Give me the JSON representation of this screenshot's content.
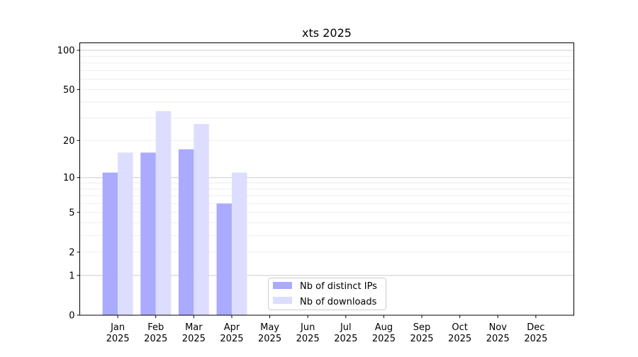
{
  "chart_data": {
    "type": "bar",
    "title": "xts 2025",
    "xlabel": "",
    "ylabel": "",
    "yscale": "log(1+y)",
    "ylim": [
      0,
      114
    ],
    "yticks": [
      0,
      1,
      2,
      5,
      10,
      20,
      50,
      100
    ],
    "ytick_labels": [
      "0",
      "1",
      "2",
      "5",
      "10",
      "20",
      "50",
      "100"
    ],
    "grid": "major and minor horizontal",
    "categories": [
      "Jan\n2025",
      "Feb\n2025",
      "Mar\n2025",
      "Apr\n2025",
      "May\n2025",
      "Jun\n2025",
      "Jul\n2025",
      "Aug\n2025",
      "Sep\n2025",
      "Oct\n2025",
      "Nov\n2025",
      "Dec\n2025"
    ],
    "category_months": [
      "Jan",
      "Feb",
      "Mar",
      "Apr",
      "May",
      "Jun",
      "Jul",
      "Aug",
      "Sep",
      "Oct",
      "Nov",
      "Dec"
    ],
    "category_year": "2025",
    "series": [
      {
        "name": "Nb of distinct IPs",
        "color": "#aaaaff",
        "values": [
          11,
          16,
          17,
          6,
          0,
          0,
          0,
          0,
          0,
          0,
          0,
          0
        ]
      },
      {
        "name": "Nb of downloads",
        "color": "#ddddff",
        "values": [
          16,
          34,
          27,
          11,
          0,
          0,
          0,
          0,
          0,
          0,
          0,
          0
        ]
      }
    ],
    "legend": "lower center"
  }
}
